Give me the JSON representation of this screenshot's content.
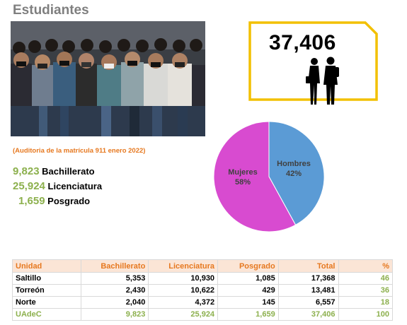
{
  "page": {
    "title": "Estudiantes"
  },
  "photo": {
    "description_icon": "students-crowd-photo"
  },
  "highlight": {
    "total": "37,406",
    "icon": "people-silhouette-icon"
  },
  "note": "(Auditoria de la matrícula 911 enero 2022)",
  "stats": [
    {
      "value": "9,823",
      "label": "Bachillerato"
    },
    {
      "value": "25,924",
      "label": "Licenciatura"
    },
    {
      "value": "1,659",
      "label": "Posgrado"
    }
  ],
  "chart_data": {
    "type": "pie",
    "title": "",
    "slices": [
      {
        "name": "Hombres",
        "value": 42,
        "label": "42%",
        "color": "#5b9bd5"
      },
      {
        "name": "Mujeres",
        "value": 58,
        "label": "58%",
        "color": "#d84bd0"
      }
    ]
  },
  "table": {
    "headers": [
      "Unidad",
      "Bachillerato",
      "Licenciatura",
      "Posgrado",
      "Total",
      "%"
    ],
    "rows": [
      [
        "Saltillo",
        "5,353",
        "10,930",
        "1,085",
        "17,368",
        "46"
      ],
      [
        "Torreón",
        "2,430",
        "10,622",
        "429",
        "13,481",
        "36"
      ],
      [
        "Norte",
        "2,040",
        "4,372",
        "145",
        "6,557",
        "18"
      ]
    ],
    "total_row": [
      "UAdeC",
      "9,823",
      "25,924",
      "1,659",
      "37,406",
      "100"
    ]
  },
  "colors": {
    "accent_orange": "#e6781f",
    "accent_green": "#8cb04d",
    "frame_yellow": "#f2c000"
  }
}
